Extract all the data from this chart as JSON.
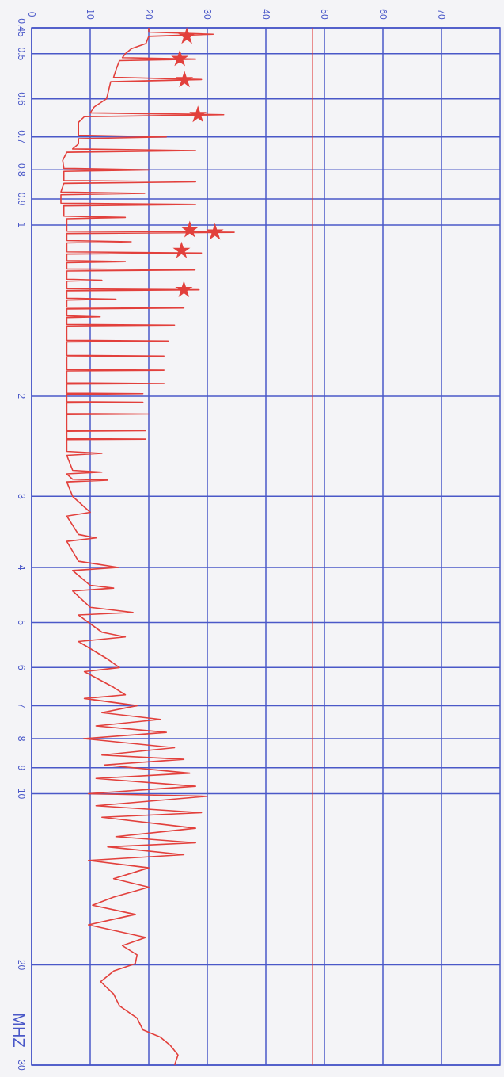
{
  "chart_data": {
    "type": "line",
    "ylabel": "MHZ",
    "log": "y",
    "ylim": [
      30,
      0.45
    ],
    "xlim": [
      0,
      80
    ],
    "yticks": [
      0.45,
      0.5,
      0.6,
      0.7,
      0.8,
      0.9,
      1,
      2,
      3,
      4,
      5,
      6,
      7,
      8,
      9,
      10,
      20,
      30
    ],
    "xticks": [
      0,
      10,
      20,
      30,
      40,
      50,
      60,
      70
    ],
    "grid": true,
    "ref_lines": [
      {
        "axis": "x",
        "value": 48,
        "color": "#e03a3a"
      }
    ],
    "series": [
      {
        "color": "#e2403c",
        "values": [
          0.45,
          0.458,
          0.462,
          0.466,
          0.48,
          0.49,
          0.5,
          0.508,
          0.511,
          0.514,
          0.53,
          0.55,
          0.555,
          0.56,
          0.6,
          0.62,
          0.635,
          0.64,
          0.645,
          0.66,
          0.695,
          0.7,
          0.705,
          0.72,
          0.735,
          0.74,
          0.745,
          0.77,
          0.795,
          0.8,
          0.805,
          0.835,
          0.84,
          0.845,
          0.875,
          0.88,
          0.885,
          0.915,
          0.92,
          0.925,
          0.965,
          0.97,
          0.975,
          1.025,
          1.03,
          1.035,
          1.065,
          1.07,
          1.075,
          1.115,
          1.12,
          1.125,
          1.155,
          1.16,
          1.165,
          1.195,
          1.2,
          1.205,
          1.245,
          1.25,
          1.255,
          1.295,
          1.3,
          1.305,
          1.345,
          1.35,
          1.355,
          1.395,
          1.4,
          1.405,
          1.445,
          1.45,
          1.455,
          1.495,
          1.5,
          1.505,
          1.595,
          1.6,
          1.605,
          1.695,
          1.7,
          1.705,
          1.795,
          1.8,
          1.805,
          1.895,
          1.9,
          1.905,
          1.975,
          1.98,
          1.985,
          2.045,
          2.05,
          2.055,
          2.145,
          2.15,
          2.155,
          2.295,
          2.3,
          2.305,
          2.375,
          2.38,
          2.385,
          2.5,
          2.52,
          2.54,
          2.7,
          2.72,
          2.74,
          2.8,
          2.81,
          2.83,
          3,
          3.2,
          3.25,
          3.5,
          3.55,
          3.6,
          3.9,
          4,
          4.05,
          4.3,
          4.35,
          4.4,
          4.7,
          4.8,
          4.85,
          5.2,
          5.3,
          5.4,
          5.8,
          6,
          6.1,
          6.5,
          6.7,
          6.8,
          7,
          7.2,
          7.4,
          7.6,
          7.8,
          8,
          8.3,
          8.55,
          8.7,
          8.9,
          9.2,
          9.4,
          9.7,
          10,
          10.1,
          10.5,
          10.8,
          11,
          11.5,
          11.9,
          12.2,
          12.4,
          12.8,
          13.1,
          13.5,
          14.1,
          14.6,
          15.2,
          15.7,
          16.3,
          17,
          17.9,
          18.5,
          19.2,
          19.9,
          20.5,
          21.4,
          22.5,
          23.6,
          24.8,
          26,
          26.8,
          27.7,
          28.8,
          30
        ],
        "x": [
          20,
          20,
          31,
          20,
          19.5,
          17,
          16,
          15.5,
          28,
          15,
          14.5,
          14,
          29,
          13.5,
          12.8,
          10.7,
          10,
          32.8,
          9,
          8,
          8,
          23,
          8,
          8,
          7,
          28,
          6,
          5.3,
          5.5,
          20,
          5.5,
          5.5,
          28,
          5.5,
          5,
          19.3,
          5,
          5,
          28,
          5.5,
          5.5,
          16,
          6,
          6,
          34.6,
          6,
          6,
          17,
          6,
          6,
          29,
          6,
          6,
          16,
          6,
          6,
          27.9,
          6,
          6,
          12,
          6,
          6,
          28.6,
          6,
          6,
          14.4,
          6,
          6,
          26,
          6,
          6,
          11.7,
          6,
          6,
          24.4,
          6,
          6,
          23.3,
          6,
          6,
          22.6,
          6,
          6,
          22.6,
          6,
          6,
          22.6,
          6,
          6,
          19,
          6,
          6,
          19,
          6,
          6,
          20,
          6,
          6,
          19.5,
          6,
          6,
          19.5,
          6,
          6,
          12,
          6,
          7,
          12,
          6,
          7,
          13,
          6,
          7,
          10,
          6,
          8,
          11,
          6,
          8,
          14.8,
          7,
          10,
          14,
          7,
          10,
          17.3,
          8,
          12,
          16,
          8,
          13,
          15,
          9,
          14,
          16,
          9,
          18,
          12,
          22,
          11,
          23,
          8.9,
          24.4,
          12,
          26,
          12.4,
          27,
          11,
          28,
          9.7,
          30,
          11,
          29,
          12,
          28,
          14.4,
          28,
          13,
          26,
          9.7,
          20,
          14,
          20,
          14,
          10.4,
          17.7,
          9.7,
          19.5,
          15.5,
          18,
          17.7,
          14,
          11.8,
          14,
          15,
          18,
          19,
          22,
          23.7,
          25,
          24.4
        ]
      },
      {
        "type": "scatter",
        "marker": "star",
        "color": "#e2403c",
        "values": [
          0.466,
          0.51,
          0.556,
          0.64,
          1.02,
          1.03,
          1.11,
          1.3
        ],
        "x": [
          26.5,
          25.3,
          26.1,
          28.4,
          27,
          31.3,
          25.6,
          26
        ]
      }
    ]
  }
}
